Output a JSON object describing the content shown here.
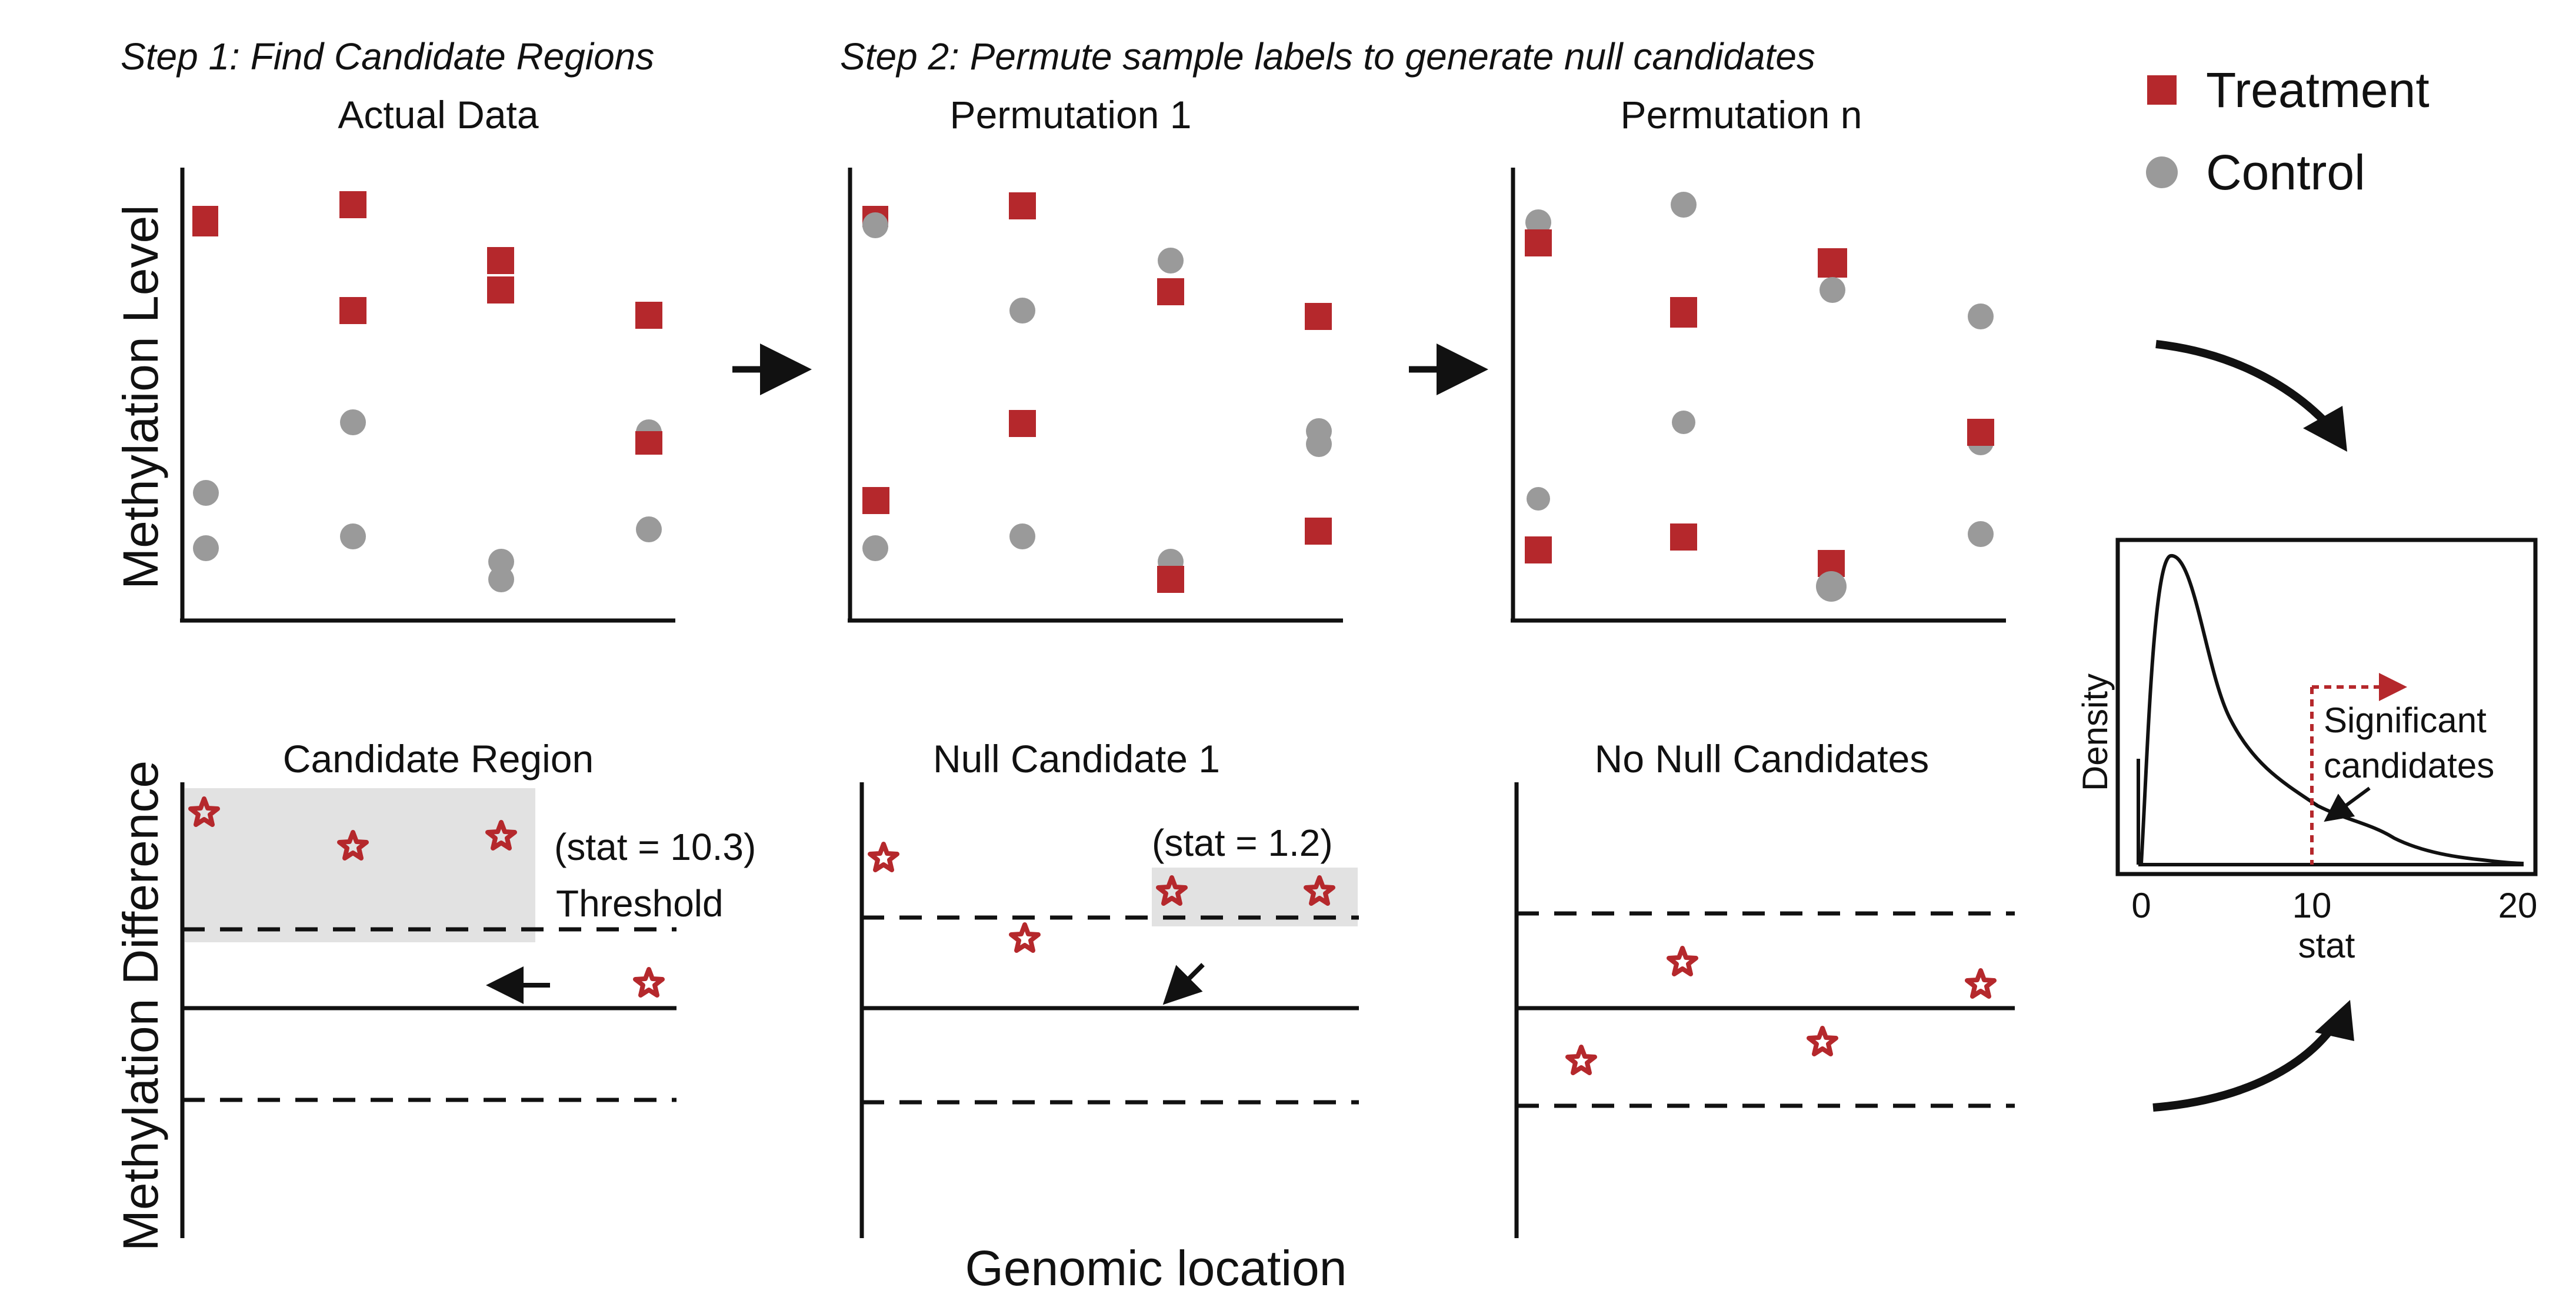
{
  "steps": {
    "step1": "Step 1: Find Candidate Regions",
    "step2": "Step 2: Permute sample labels to generate null candidates"
  },
  "panel_titles": {
    "actual": "Actual Data",
    "perm1": "Permutation 1",
    "permn": "Permutation n",
    "candidate": "Candidate Region",
    "null1": "Null Candidate 1",
    "nonull": "No Null Candidates"
  },
  "axis_labels": {
    "methylation_level": "Methylation Level",
    "methylation_difference": "Methylation Difference",
    "genomic_location": "Genomic location"
  },
  "legend": {
    "treatment": "Treatment",
    "control": "Control"
  },
  "annotations": {
    "stat_candidate": "(stat = 10.3)",
    "threshold": "Threshold",
    "stat_null": "(stat = 1.2)"
  },
  "density_plot": {
    "ylabel": "Density",
    "xlabel": "stat",
    "ticks": [
      "0",
      "10",
      "20"
    ],
    "annotation_line1": "Significant",
    "annotation_line2": "candidates"
  },
  "colors": {
    "treatment": "#b5282c",
    "control": "#9a9a9a",
    "highlight": "#e2e2e2",
    "ink": "#111111"
  }
}
